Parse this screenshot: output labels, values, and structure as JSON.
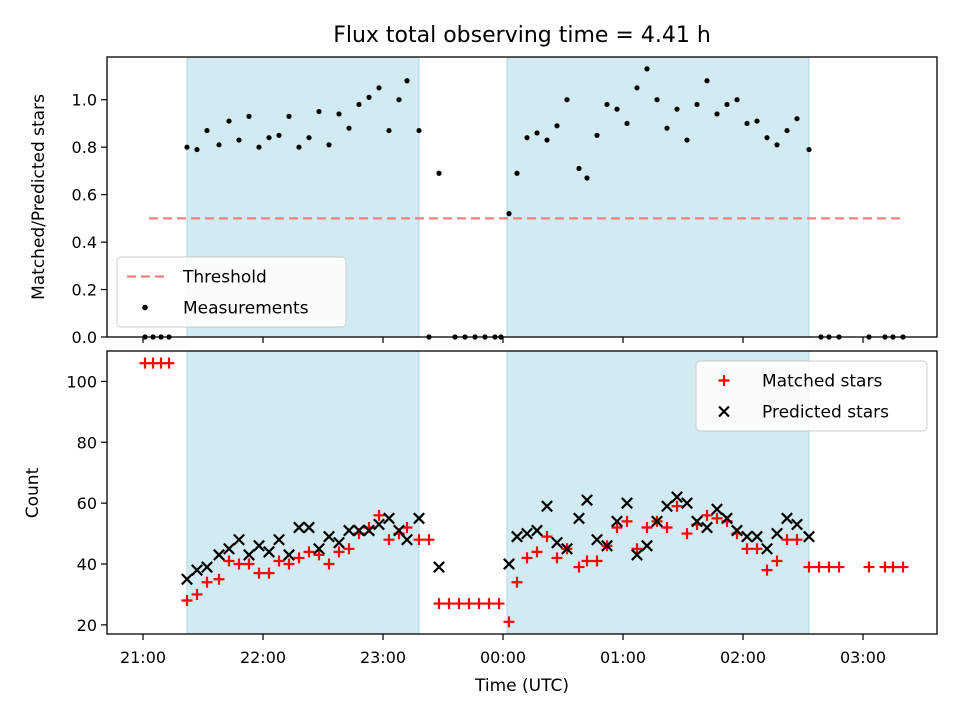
{
  "chart_data": [
    {
      "type": "scatter",
      "title": "Flux total observing time = 4.41 h",
      "xlabel": "",
      "ylabel": "Matched/Predicted stars",
      "ylim": [
        0,
        1.18
      ],
      "yticks": [
        "0.0",
        "0.2",
        "0.4",
        "0.6",
        "0.8",
        "1.0"
      ],
      "grid": false,
      "legend_position": "lower-left",
      "shaded_intervals": [
        [
          "21:22",
          "23:18"
        ],
        [
          "00:02",
          "02:33"
        ]
      ],
      "threshold": {
        "name": "Threshold",
        "y": 0.5,
        "x_range": [
          "21:03",
          "03:20"
        ],
        "color": "#f08080",
        "style": "dashed"
      },
      "series": [
        {
          "name": "Measurements",
          "marker": "dot",
          "color": "#000000",
          "points": [
            [
              "21:01",
              0.0
            ],
            [
              "21:05",
              0.0
            ],
            [
              "21:09",
              0.0
            ],
            [
              "21:13",
              0.0
            ],
            [
              "21:22",
              0.8
            ],
            [
              "21:27",
              0.79
            ],
            [
              "21:32",
              0.87
            ],
            [
              "21:38",
              0.81
            ],
            [
              "21:43",
              0.91
            ],
            [
              "21:48",
              0.83
            ],
            [
              "21:53",
              0.93
            ],
            [
              "21:58",
              0.8
            ],
            [
              "22:03",
              0.84
            ],
            [
              "22:08",
              0.85
            ],
            [
              "22:13",
              0.93
            ],
            [
              "22:18",
              0.8
            ],
            [
              "22:23",
              0.84
            ],
            [
              "22:28",
              0.95
            ],
            [
              "22:33",
              0.81
            ],
            [
              "22:38",
              0.94
            ],
            [
              "22:43",
              0.88
            ],
            [
              "22:48",
              0.98
            ],
            [
              "22:53",
              1.01
            ],
            [
              "22:58",
              1.05
            ],
            [
              "23:03",
              0.87
            ],
            [
              "23:08",
              1.0
            ],
            [
              "23:12",
              1.08
            ],
            [
              "23:18",
              0.87
            ],
            [
              "23:23",
              0.0
            ],
            [
              "23:28",
              0.69
            ],
            [
              "23:36",
              0.0
            ],
            [
              "23:41",
              0.0
            ],
            [
              "23:46",
              0.0
            ],
            [
              "23:51",
              0.0
            ],
            [
              "23:56",
              0.0
            ],
            [
              "23:59",
              0.0
            ],
            [
              "00:03",
              0.52
            ],
            [
              "00:07",
              0.69
            ],
            [
              "00:12",
              0.84
            ],
            [
              "00:17",
              0.86
            ],
            [
              "00:22",
              0.83
            ],
            [
              "00:27",
              0.89
            ],
            [
              "00:32",
              1.0
            ],
            [
              "00:38",
              0.71
            ],
            [
              "00:42",
              0.67
            ],
            [
              "00:47",
              0.85
            ],
            [
              "00:52",
              0.98
            ],
            [
              "00:57",
              0.96
            ],
            [
              "01:02",
              0.9
            ],
            [
              "01:07",
              1.05
            ],
            [
              "01:12",
              1.13
            ],
            [
              "01:17",
              1.0
            ],
            [
              "01:22",
              0.88
            ],
            [
              "01:27",
              0.96
            ],
            [
              "01:32",
              0.83
            ],
            [
              "01:37",
              0.98
            ],
            [
              "01:42",
              1.08
            ],
            [
              "01:47",
              0.94
            ],
            [
              "01:52",
              0.98
            ],
            [
              "01:57",
              1.0
            ],
            [
              "02:02",
              0.9
            ],
            [
              "02:07",
              0.91
            ],
            [
              "02:12",
              0.84
            ],
            [
              "02:17",
              0.81
            ],
            [
              "02:22",
              0.87
            ],
            [
              "02:27",
              0.92
            ],
            [
              "02:33",
              0.79
            ],
            [
              "02:39",
              0.0
            ],
            [
              "02:43",
              0.0
            ],
            [
              "02:48",
              0.0
            ],
            [
              "03:03",
              0.0
            ],
            [
              "03:11",
              0.0
            ],
            [
              "03:15",
              0.0
            ],
            [
              "03:20",
              0.0
            ]
          ]
        }
      ]
    },
    {
      "type": "scatter",
      "title": "",
      "xlabel": "Time (UTC)",
      "ylabel": "Count",
      "ylim": [
        17,
        110
      ],
      "yticks": [
        "20",
        "40",
        "60",
        "80",
        "100"
      ],
      "xticks": [
        "21:00",
        "22:00",
        "23:00",
        "00:00",
        "01:00",
        "02:00",
        "03:00"
      ],
      "grid": false,
      "legend_position": "top-right",
      "shaded_intervals": [
        [
          "21:22",
          "23:18"
        ],
        [
          "00:02",
          "02:33"
        ]
      ],
      "series": [
        {
          "name": "Matched stars",
          "marker": "plus",
          "color": "#ff0000",
          "points": [
            [
              "21:01",
              106
            ],
            [
              "21:05",
              106
            ],
            [
              "21:09",
              106
            ],
            [
              "21:13",
              106
            ],
            [
              "21:22",
              28
            ],
            [
              "21:27",
              30
            ],
            [
              "21:32",
              34
            ],
            [
              "21:38",
              35
            ],
            [
              "21:43",
              41
            ],
            [
              "21:48",
              40
            ],
            [
              "21:53",
              40
            ],
            [
              "21:58",
              37
            ],
            [
              "22:03",
              37
            ],
            [
              "22:08",
              41
            ],
            [
              "22:13",
              40
            ],
            [
              "22:18",
              42
            ],
            [
              "22:23",
              44
            ],
            [
              "22:28",
              43
            ],
            [
              "22:33",
              40
            ],
            [
              "22:38",
              44
            ],
            [
              "22:43",
              45
            ],
            [
              "22:48",
              50
            ],
            [
              "22:53",
              52
            ],
            [
              "22:58",
              56
            ],
            [
              "23:03",
              48
            ],
            [
              "23:08",
              50
            ],
            [
              "23:12",
              52
            ],
            [
              "23:18",
              48
            ],
            [
              "23:23",
              48
            ],
            [
              "23:28",
              27
            ],
            [
              "23:33",
              27
            ],
            [
              "23:38",
              27
            ],
            [
              "23:43",
              27
            ],
            [
              "23:48",
              27
            ],
            [
              "23:53",
              27
            ],
            [
              "23:58",
              27
            ],
            [
              "00:03",
              21
            ],
            [
              "00:07",
              34
            ],
            [
              "00:12",
              42
            ],
            [
              "00:17",
              44
            ],
            [
              "00:22",
              49
            ],
            [
              "00:27",
              42
            ],
            [
              "00:32",
              45
            ],
            [
              "00:38",
              39
            ],
            [
              "00:42",
              41
            ],
            [
              "00:47",
              41
            ],
            [
              "00:52",
              46
            ],
            [
              "00:57",
              52
            ],
            [
              "01:02",
              54
            ],
            [
              "01:07",
              45
            ],
            [
              "01:12",
              52
            ],
            [
              "01:17",
              54
            ],
            [
              "01:22",
              52
            ],
            [
              "01:27",
              59
            ],
            [
              "01:32",
              50
            ],
            [
              "01:37",
              53
            ],
            [
              "01:42",
              56
            ],
            [
              "01:47",
              55
            ],
            [
              "01:52",
              54
            ],
            [
              "01:57",
              50
            ],
            [
              "02:02",
              45
            ],
            [
              "02:07",
              45
            ],
            [
              "02:12",
              38
            ],
            [
              "02:17",
              41
            ],
            [
              "02:22",
              48
            ],
            [
              "02:27",
              48
            ],
            [
              "02:33",
              39
            ],
            [
              "02:38",
              39
            ],
            [
              "02:43",
              39
            ],
            [
              "02:48",
              39
            ],
            [
              "03:03",
              39
            ],
            [
              "03:11",
              39
            ],
            [
              "03:15",
              39
            ],
            [
              "03:20",
              39
            ]
          ]
        },
        {
          "name": "Predicted stars",
          "marker": "x",
          "color": "#000000",
          "points": [
            [
              "21:22",
              35
            ],
            [
              "21:27",
              38
            ],
            [
              "21:32",
              39
            ],
            [
              "21:38",
              43
            ],
            [
              "21:43",
              45
            ],
            [
              "21:48",
              48
            ],
            [
              "21:53",
              43
            ],
            [
              "21:58",
              46
            ],
            [
              "22:03",
              44
            ],
            [
              "22:08",
              48
            ],
            [
              "22:13",
              43
            ],
            [
              "22:18",
              52
            ],
            [
              "22:23",
              52
            ],
            [
              "22:28",
              45
            ],
            [
              "22:33",
              49
            ],
            [
              "22:38",
              47
            ],
            [
              "22:43",
              51
            ],
            [
              "22:48",
              51
            ],
            [
              "22:53",
              51
            ],
            [
              "22:58",
              53
            ],
            [
              "23:03",
              55
            ],
            [
              "23:08",
              51
            ],
            [
              "23:12",
              48
            ],
            [
              "23:18",
              55
            ],
            [
              "23:28",
              39
            ],
            [
              "00:03",
              40
            ],
            [
              "00:07",
              49
            ],
            [
              "00:12",
              50
            ],
            [
              "00:17",
              51
            ],
            [
              "00:22",
              59
            ],
            [
              "00:27",
              47
            ],
            [
              "00:32",
              45
            ],
            [
              "00:38",
              55
            ],
            [
              "00:42",
              61
            ],
            [
              "00:47",
              48
            ],
            [
              "00:52",
              46
            ],
            [
              "00:57",
              54
            ],
            [
              "01:02",
              60
            ],
            [
              "01:07",
              43
            ],
            [
              "01:12",
              46
            ],
            [
              "01:17",
              54
            ],
            [
              "01:22",
              59
            ],
            [
              "01:27",
              62
            ],
            [
              "01:32",
              60
            ],
            [
              "01:37",
              54
            ],
            [
              "01:42",
              52
            ],
            [
              "01:47",
              58
            ],
            [
              "01:52",
              55
            ],
            [
              "01:57",
              51
            ],
            [
              "02:02",
              49
            ],
            [
              "02:07",
              49
            ],
            [
              "02:12",
              45
            ],
            [
              "02:17",
              50
            ],
            [
              "02:22",
              55
            ],
            [
              "02:27",
              53
            ],
            [
              "02:33",
              49
            ]
          ]
        }
      ]
    }
  ],
  "colors": {
    "shade": "#add8e6",
    "threshold": "#f08080",
    "matched": "#ff0000",
    "predicted": "#000000"
  }
}
